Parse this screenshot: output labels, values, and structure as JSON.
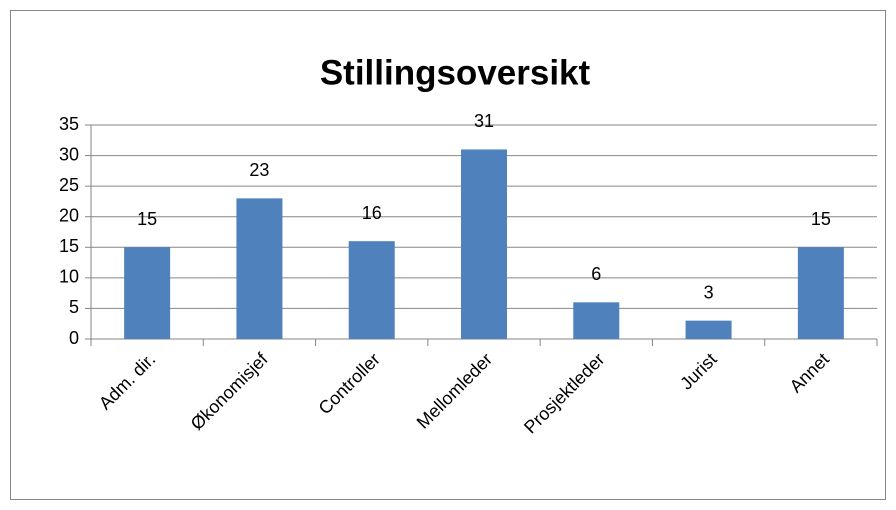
{
  "chart_data": {
    "type": "bar",
    "title": "Stillingsoversikt",
    "categories": [
      "Adm. dir.",
      "Økonomisjef",
      "Controller",
      "Mellomleder",
      "Prosjektleder",
      "Jurist",
      "Annet"
    ],
    "values": [
      15,
      23,
      16,
      31,
      6,
      3,
      15
    ],
    "color": "#4f81bd",
    "ylim": [
      0,
      35
    ],
    "yticks": [
      0,
      5,
      10,
      15,
      20,
      25,
      30,
      35
    ],
    "grid": true,
    "data_labels": true
  }
}
